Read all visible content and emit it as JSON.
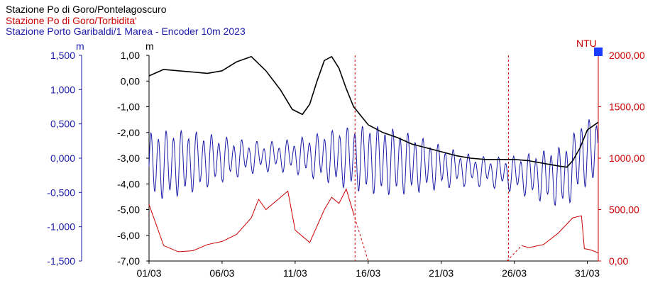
{
  "legend": {
    "series1": "Stazione Po di Goro/Pontelagoscuro",
    "series2": "Stazione Po di Goro/Torbidita'",
    "series3": "Stazione Porto Garibaldi/1 Marea - Encoder 10m 2023"
  },
  "colors": {
    "black_series": "#000000",
    "red_series": "#cc0000",
    "blue_series": "#1a1aa8",
    "blue_marker": "#1a3cff"
  },
  "chart_data": {
    "type": "line",
    "x_axis": {
      "ticks": [
        "01/03",
        "06/03",
        "11/03",
        "16/03",
        "21/03",
        "26/03",
        "31/03"
      ],
      "range": [
        "2023-03-01",
        "2023-03-31 18:00"
      ]
    },
    "axes": {
      "blue_left": {
        "unit": "m",
        "ticks": [
          "1,500",
          "1,000",
          "0,500",
          "0,000",
          "-0,500",
          "-1,000",
          "-1,500"
        ],
        "range": [
          -1.5,
          1.5
        ]
      },
      "black_left": {
        "unit": "m",
        "ticks": [
          "1,00",
          "0,00",
          "-1,00",
          "-2,00",
          "-3,00",
          "-4,00",
          "-5,00",
          "-6,00",
          "-7,00"
        ],
        "range": [
          -7,
          1
        ]
      },
      "red_right": {
        "unit": "NTU",
        "ticks": [
          "2000,00",
          "1500,00",
          "1000,00",
          "500,00",
          "0,00"
        ],
        "range": [
          0,
          2000
        ]
      }
    },
    "series": [
      {
        "name": "Stazione Po di Goro/Pontelagoscuro",
        "axis": "black_left",
        "x_days": [
          0,
          1,
          2,
          3,
          4,
          5,
          6,
          7,
          8,
          9,
          9.8,
          10.5,
          11,
          11.5,
          12,
          12.5,
          13,
          13.5,
          14,
          15,
          16,
          17,
          18,
          19,
          20,
          21,
          22,
          23,
          24,
          25,
          26,
          27,
          28,
          28.6,
          29,
          29.5,
          30,
          30.75
        ],
        "y": [
          0.2,
          0.45,
          0.4,
          0.35,
          0.3,
          0.4,
          0.75,
          0.95,
          0.4,
          -0.35,
          -1.1,
          -1.3,
          -0.9,
          0.0,
          0.8,
          0.95,
          0.5,
          -0.3,
          -1.0,
          -1.7,
          -2.0,
          -2.2,
          -2.45,
          -2.6,
          -2.75,
          -2.9,
          -3.0,
          -3.05,
          -3.05,
          -3.05,
          -3.1,
          -3.2,
          -3.3,
          -3.35,
          -3.1,
          -2.6,
          -1.9,
          -1.6
        ]
      },
      {
        "name": "Stazione Po di Goro/Torbidita'",
        "axis": "red_right",
        "x_days": [
          0,
          1,
          2,
          3,
          4,
          5,
          6,
          7,
          7.5,
          8,
          9,
          9.5,
          10,
          11,
          12,
          12.5,
          13,
          13.5,
          14,
          15,
          24.5,
          25.5,
          26,
          27,
          28,
          29,
          29.6,
          29.8,
          30.2,
          30.75
        ],
        "y": [
          550,
          150,
          90,
          100,
          160,
          190,
          260,
          420,
          600,
          500,
          620,
          680,
          300,
          180,
          500,
          620,
          560,
          700,
          460,
          0,
          0,
          150,
          130,
          160,
          270,
          420,
          440,
          120,
          110,
          80
        ]
      },
      {
        "name": "Stazione Porto Garibaldi/1 Marea - Encoder 10m 2023",
        "axis": "blue_left",
        "description": "semi-diurnal tidal oscillation, amplitude roughly ±0.6 m about -0.1 m, ranging about -1.0 to 0.6 m",
        "range": [
          -1.0,
          0.55
        ]
      }
    ],
    "annotations": {
      "vertical_dashed_lines_days": [
        14.1,
        24.6
      ],
      "grid": false
    }
  }
}
